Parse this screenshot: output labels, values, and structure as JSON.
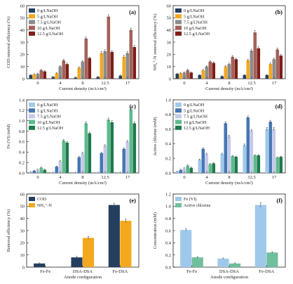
{
  "chart_data": [
    {
      "id": "a",
      "type": "bar",
      "panel_label": "(a)",
      "categories": [
        "0",
        "4",
        "8",
        "12.5",
        "17"
      ],
      "xlabel": "Current density (mA/cm²)",
      "ylabel": "COD removal efficiency (%)",
      "ylim": [
        0,
        60
      ],
      "yticks": [
        0,
        10,
        20,
        30,
        40,
        50,
        60
      ],
      "legend": "top-left",
      "series": [
        {
          "name": "0 g/LNaOH",
          "color": "#243f5e",
          "values": [
            3,
            1.5,
            1,
            1.5,
            2.5
          ],
          "errors": [
            0.5,
            0.3,
            0.3,
            0.3,
            0.5
          ]
        },
        {
          "name": "5 g/LNaOH",
          "color": "#f3a81d",
          "values": [
            3.5,
            4.5,
            9,
            21,
            18
          ],
          "errors": [
            0.6,
            0.6,
            0.8,
            1.2,
            1.2
          ]
        },
        {
          "name": "7.5 g/LNaOH",
          "color": "#8c8c8c",
          "values": [
            4,
            10,
            14,
            22.5,
            21
          ],
          "errors": [
            0.6,
            0.8,
            0.8,
            1.2,
            1.2
          ]
        },
        {
          "name": "10 g/LNaOH",
          "color": "#a3625a",
          "values": [
            7,
            15,
            33,
            51,
            40
          ],
          "errors": [
            0.8,
            1,
            1.2,
            1.5,
            1.5
          ]
        },
        {
          "name": "12.5 g/LNaOH",
          "color": "#7e1d17",
          "values": [
            6,
            12,
            17,
            22,
            26
          ],
          "errors": [
            0.6,
            0.8,
            0.8,
            1,
            1.2
          ]
        }
      ]
    },
    {
      "id": "b",
      "type": "bar",
      "panel_label": "(b)",
      "categories": [
        "0",
        "4",
        "8",
        "12.5",
        "17"
      ],
      "xlabel": "Current density (mA/cm²)",
      "ylabel": "NH₄⁺-N removal efficiency (%)",
      "ylim": [
        0,
        60
      ],
      "yticks": [
        0,
        10,
        20,
        30,
        40,
        50,
        60
      ],
      "legend": "top-left",
      "series": [
        {
          "name": "0 g/LNaOH",
          "color": "#243f5e",
          "values": [
            4,
            3,
            2,
            3,
            3
          ],
          "errors": [
            0.5,
            0.4,
            0.4,
            0.4,
            0.4
          ]
        },
        {
          "name": "5 g/LNaOH",
          "color": "#f3a81d",
          "values": [
            4.5,
            7,
            10,
            15,
            12
          ],
          "errors": [
            0.6,
            0.6,
            0.8,
            1,
            1
          ]
        },
        {
          "name": "7.5 g/LNaOH",
          "color": "#8c8c8c",
          "values": [
            5,
            10,
            12,
            23,
            16
          ],
          "errors": [
            0.6,
            0.8,
            0.8,
            1.2,
            1
          ]
        },
        {
          "name": "10 g/LNaOH",
          "color": "#a3625a",
          "values": [
            7,
            14,
            18,
            38,
            24
          ],
          "errors": [
            0.8,
            0.8,
            1,
            1.5,
            1.2
          ]
        },
        {
          "name": "12.5 g/LNaOH",
          "color": "#7e1d17",
          "values": [
            5,
            13,
            16,
            25,
            19
          ],
          "errors": [
            0.6,
            0.8,
            0.8,
            1.2,
            1
          ]
        }
      ]
    },
    {
      "id": "c",
      "type": "bar",
      "panel_label": "(c)",
      "categories": [
        "0",
        "4",
        "8",
        "12.5",
        "17"
      ],
      "xlabel": "Current density (mA/cm²)",
      "ylabel": "Fe (VI) (mM)",
      "ylim": [
        0,
        1.4
      ],
      "yticks": [
        0,
        0.2,
        0.4,
        0.6,
        0.8,
        1.0,
        1.2,
        1.4
      ],
      "legend": "top-left",
      "series": [
        {
          "name": "0 g/LNaOH",
          "color": "#9fc9ea",
          "values": [
            0.02,
            0.01,
            0.01,
            0.01,
            0.01
          ],
          "errors": [
            0.005,
            0.005,
            0.005,
            0.005,
            0.005
          ]
        },
        {
          "name": "5 g/LNaOH",
          "color": "#4577b3",
          "values": [
            0.04,
            0.12,
            0.3,
            0.38,
            0.46
          ],
          "errors": [
            0.01,
            0.01,
            0.015,
            0.015,
            0.02
          ]
        },
        {
          "name": "7.5 g/LNaOH",
          "color": "#c5c9ea",
          "values": [
            0.06,
            0.22,
            0.38,
            0.52,
            0.6
          ],
          "errors": [
            0.01,
            0.015,
            0.015,
            0.02,
            0.02
          ]
        },
        {
          "name": "10 g/LNaOH",
          "color": "#5fba8c",
          "values": [
            0.1,
            0.62,
            0.95,
            1.02,
            1.22
          ],
          "errors": [
            0.01,
            0.02,
            0.03,
            0.03,
            0.03
          ]
        },
        {
          "name": "12.5 g/LNaOH",
          "color": "#1d7a4e",
          "values": [
            0.06,
            0.58,
            0.76,
            0.97,
            0.95
          ],
          "errors": [
            0.01,
            0.02,
            0.02,
            0.03,
            0.03
          ]
        }
      ]
    },
    {
      "id": "d",
      "type": "bar",
      "panel_label": "(d)",
      "categories": [
        "0",
        "4",
        "8",
        "12.5",
        "17"
      ],
      "xlabel": "Current density (mA/cm²)",
      "ylabel": "Active chlorine (mM)",
      "ylim": [
        0,
        1.0
      ],
      "yticks": [
        0,
        0.2,
        0.4,
        0.6,
        0.8,
        1.0
      ],
      "legend": "top-left",
      "series": [
        {
          "name": "0 g/LNaOH",
          "color": "#9fc9ea",
          "values": [
            0.02,
            0.18,
            0.26,
            0.38,
            0.6
          ],
          "errors": [
            0.005,
            0.01,
            0.01,
            0.015,
            0.02
          ]
        },
        {
          "name": "5 g/LNaOH",
          "color": "#4577b3",
          "values": [
            0.04,
            0.33,
            0.68,
            0.76,
            0.7
          ],
          "errors": [
            0.01,
            0.015,
            0.02,
            0.02,
            0.02
          ]
        },
        {
          "name": "7.5 g/LNaOH",
          "color": "#c5c9ea",
          "values": [
            0.06,
            0.26,
            0.5,
            0.58,
            0.6
          ],
          "errors": [
            0.01,
            0.01,
            0.015,
            0.015,
            0.02
          ]
        },
        {
          "name": "10 g/LNaOH",
          "color": "#5fba8c",
          "values": [
            0.1,
            0.12,
            0.23,
            0.24,
            0.21
          ],
          "errors": [
            0.01,
            0.01,
            0.01,
            0.01,
            0.01
          ]
        },
        {
          "name": "12.5 g/LNaOH",
          "color": "#1d7a4e",
          "values": [
            0.07,
            0.13,
            0.22,
            0.24,
            0.22
          ],
          "errors": [
            0.01,
            0.01,
            0.01,
            0.01,
            0.01
          ]
        }
      ]
    },
    {
      "id": "e",
      "type": "bar",
      "panel_label": "(e)",
      "categories": [
        "Fe-Fe",
        "DSA-DSA",
        "Fe-DSA"
      ],
      "xlabel": "Anode configuration",
      "ylabel": "Removal efficiency (%)",
      "ylim": [
        0,
        60
      ],
      "yticks": [
        0,
        10,
        20,
        30,
        40,
        50,
        60
      ],
      "legend": "top-left",
      "series": [
        {
          "name": "COD",
          "color": "#243f5e",
          "values": [
            3,
            8,
            51
          ],
          "errors": [
            0.5,
            0.8,
            1.5
          ]
        },
        {
          "name": "NH₄⁺-N",
          "color": "#f3a81d",
          "values": [
            0,
            24,
            38
          ],
          "errors": [
            0,
            1.2,
            1.5
          ]
        }
      ]
    },
    {
      "id": "f",
      "type": "bar",
      "panel_label": "(f)",
      "categories": [
        "Fe-Fe",
        "DSA-DSA",
        "Fe-DSA"
      ],
      "xlabel": "Anode configuration",
      "ylabel": "Concentration (mM)",
      "ylim": [
        0,
        1.2
      ],
      "yticks": [
        0,
        0.2,
        0.4,
        0.6,
        0.8,
        1.0,
        1.2
      ],
      "legend": "top-left",
      "series": [
        {
          "name": "Fe (VI)",
          "color": "#9fc9ea",
          "values": [
            0.61,
            0.14,
            1.02
          ],
          "errors": [
            0.02,
            0.01,
            0.04
          ]
        },
        {
          "name": "Active chlorine",
          "color": "#6fbf9c",
          "values": [
            0.16,
            0.06,
            0.24
          ],
          "errors": [
            0.01,
            0.01,
            0.01
          ]
        }
      ]
    }
  ]
}
